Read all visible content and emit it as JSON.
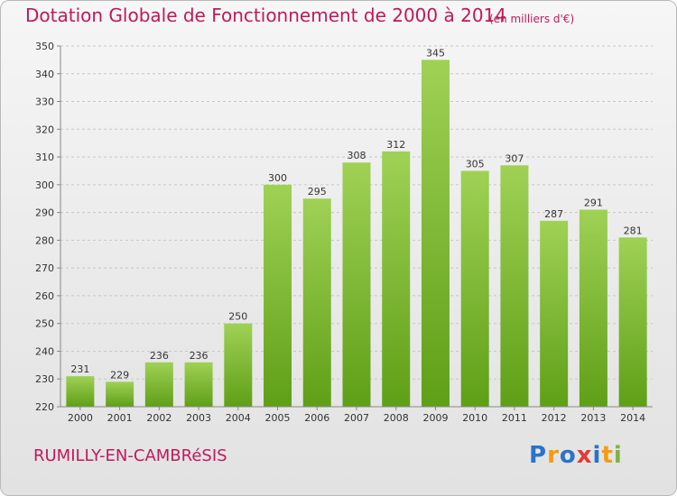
{
  "title": "Dotation Globale de Fonctionnement de 2000 à 2014",
  "unit_note": "(en milliers d'€)",
  "commune": "RUMILLY-EN-CAMBRéSIS",
  "logo": {
    "text": "Proxiti",
    "colors": [
      "#2a73c9",
      "#f39c12",
      "#2a73c9",
      "#e53935",
      "#2a73c9",
      "#f39c12",
      "#7cb342"
    ]
  },
  "colors": {
    "title": "#c2185b",
    "bar_light": "#9fd155",
    "bar_dark": "#5f9f17",
    "grid": "#c8c8c8"
  },
  "chart_data": {
    "type": "bar",
    "categories": [
      "2000",
      "2001",
      "2002",
      "2003",
      "2004",
      "2005",
      "2006",
      "2007",
      "2008",
      "2009",
      "2010",
      "2011",
      "2012",
      "2013",
      "2014"
    ],
    "values": [
      231,
      229,
      236,
      236,
      250,
      300,
      295,
      308,
      312,
      345,
      305,
      307,
      287,
      291,
      281
    ],
    "yticks": [
      220,
      230,
      240,
      250,
      260,
      270,
      280,
      290,
      300,
      310,
      320,
      330,
      340,
      350
    ],
    "ylim": [
      220,
      350
    ],
    "grid": true,
    "data_labels": true
  }
}
